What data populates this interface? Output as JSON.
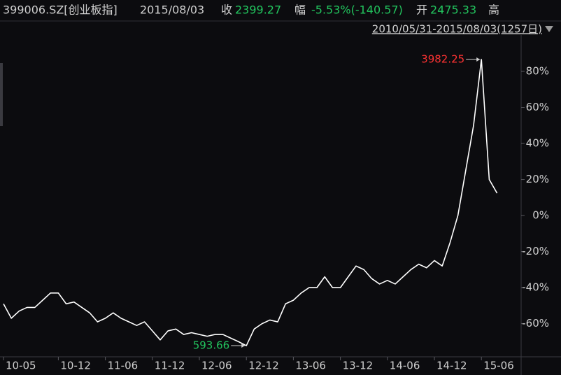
{
  "header": {
    "symbol": "399006.SZ[创业板指]",
    "date": "2015/08/03",
    "close_label": "收",
    "close": "2399.27",
    "change_label": "幅",
    "change": "-5.53%(-140.57)",
    "open_label": "开",
    "open": "2475.33",
    "high_label": "高"
  },
  "chart_data": {
    "type": "line",
    "range": "2010/05/31-2015/08/03(1257日)",
    "categories": [
      "10-05",
      null,
      null,
      null,
      null,
      null,
      null,
      "10-12",
      null,
      null,
      null,
      null,
      null,
      "11-06",
      null,
      null,
      null,
      null,
      null,
      "11-12",
      null,
      null,
      null,
      null,
      null,
      "12-06",
      null,
      null,
      null,
      null,
      null,
      "12-12",
      null,
      null,
      null,
      null,
      null,
      "13-06",
      null,
      null,
      null,
      null,
      null,
      "13-12",
      null,
      null,
      null,
      null,
      null,
      "14-06",
      null,
      null,
      null,
      null,
      null,
      "14-12",
      null,
      null,
      null,
      null,
      null,
      "15-06",
      null,
      null
    ],
    "series": [
      {
        "name": "399006.SZ",
        "color": "#ffffff",
        "values": [
          -49,
          -57,
          -53,
          -51,
          -51,
          -47,
          -43,
          -43,
          -49,
          -48,
          -51,
          -54,
          -59,
          -57,
          -54,
          -57,
          -59,
          -61,
          -59,
          -64,
          -69,
          -64,
          -63,
          -66,
          -65,
          -66,
          -67,
          -66,
          -66,
          -68,
          -70,
          -72.2,
          -63,
          -60,
          -58,
          -59,
          -49,
          -47,
          -43,
          -40,
          -40,
          -34,
          -40,
          -40,
          -34,
          -28,
          -30,
          -35,
          -38,
          -36,
          -38,
          -34,
          -30,
          -27,
          -29,
          -25,
          -28,
          -15,
          0,
          25,
          50,
          86.6,
          20,
          12.4
        ]
      }
    ],
    "ylim": [
      -78.4,
      100.2
    ],
    "yticks": [
      {
        "value": 80,
        "label": "80%"
      },
      {
        "value": 60,
        "label": "60%"
      },
      {
        "value": 40,
        "label": "40%"
      },
      {
        "value": 20,
        "label": "20%"
      },
      {
        "value": 0,
        "label": "0%"
      },
      {
        "value": -20,
        "label": "-20%"
      },
      {
        "value": -40,
        "label": "-40%"
      },
      {
        "value": -60,
        "label": "-60%"
      }
    ],
    "annotations": {
      "max": {
        "text": "3982.25",
        "color": "#ff3333"
      },
      "min": {
        "text": "593.66",
        "color": "#22c55e"
      }
    }
  }
}
